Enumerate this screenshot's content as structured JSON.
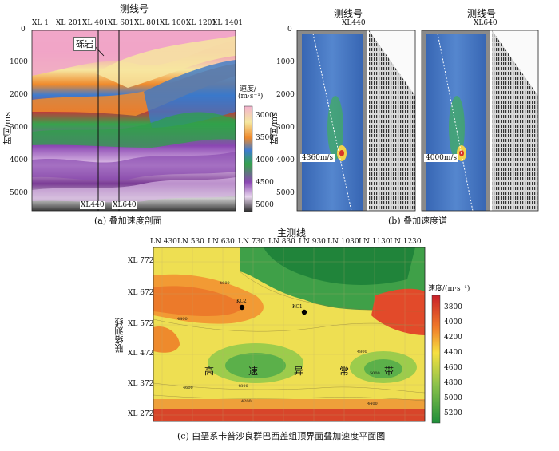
{
  "panel_a": {
    "title": "测线号",
    "xticks": [
      "XL 1",
      "XL 201",
      "XL 401",
      "XL 601",
      "XL 801",
      "XL 1001",
      "XL 1201",
      "XL 1401"
    ],
    "ylabel": "时间/ms",
    "yticks": [
      "0",
      "1000",
      "2000",
      "3000",
      "4000",
      "5000"
    ],
    "annot_rock": "砾岩",
    "line_a": "XL440",
    "line_b": "XL640",
    "legend_title_1": "速度/",
    "legend_title_2": "(m·s⁻¹)",
    "legend_ticks": [
      "3000",
      "3500",
      "4000",
      "4500",
      "5000"
    ],
    "caption": "(a)  叠加速度剖面"
  },
  "panel_b": {
    "title_left": "测线号",
    "line_left": "XL440",
    "title_right": "测线号",
    "line_right": "XL640",
    "ylabel": "时间/ms",
    "yticks": [
      "0",
      "1000",
      "2000",
      "3000",
      "4000",
      "5000"
    ],
    "vel_left": "4360m/s",
    "vel_right": "4000m/s",
    "caption": "(b)  叠加速度谱"
  },
  "panel_c": {
    "title": "主测线",
    "xticks": [
      "LN 430",
      "LN 530",
      "LN 630",
      "LN 730",
      "LN 830",
      "LN 930",
      "LN 1030",
      "LN 1130",
      "LN 1230"
    ],
    "ylabel": "联络测线",
    "yticks": [
      "XL 772",
      "XL 672",
      "XL 572",
      "XL 472",
      "XL 372",
      "XL 272"
    ],
    "wells": [
      "KC2",
      "KC1"
    ],
    "anomaly_chars": [
      "高",
      "速",
      "异",
      "常",
      "带"
    ],
    "legend_title": "速度/(m·s⁻¹)",
    "legend_ticks": [
      "3800",
      "4000",
      "4200",
      "4400",
      "4600",
      "4800",
      "5000",
      "5200"
    ],
    "contour_labels": [
      "4600",
      "4400",
      "4800",
      "4600",
      "5000",
      "4800",
      "4200",
      "4400"
    ],
    "caption": "(c)  白垩系卡普沙良群巴西盖组顶界面叠加速度平面图"
  },
  "colors": {
    "pink": "#ef9fc6",
    "yellow": "#f4e08a",
    "orange": "#ee8a2c",
    "blue": "#3a78c9",
    "green": "#2fa04a",
    "purple": "#8a4bb0",
    "red": "#d8362a",
    "gray": "#8a8a8a"
  }
}
